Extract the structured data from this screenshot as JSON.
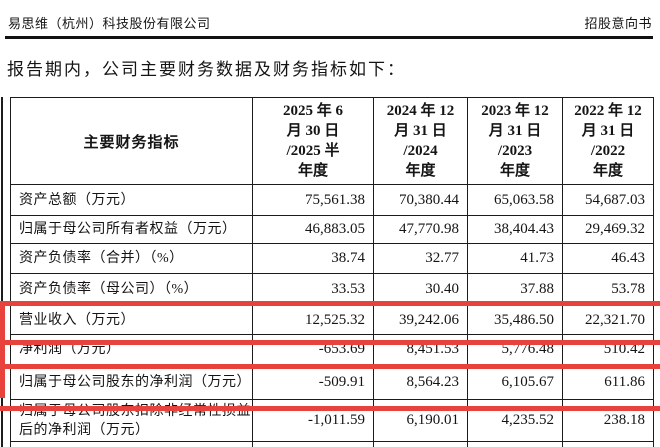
{
  "header": {
    "company": "易思维（杭州）科技股份有限公司",
    "doc_type": "招股意向书"
  },
  "intro": "报告期内，公司主要财务数据及财务指标如下：",
  "table": {
    "indicator_header": "主要财务指标",
    "period_headers": [
      "2025 年 6\n月 30 日\n/2025 半\n年度",
      "2024 年 12\n月 31 日\n/2024\n年度",
      "2023 年 12\n月 31 日\n/2023\n年度",
      "2022 年 12\n月 31 日\n/2022\n年度"
    ],
    "rows": [
      {
        "label": "资产总额（万元）",
        "values": [
          "75,561.38",
          "70,380.44",
          "65,063.58",
          "54,687.03"
        ],
        "highlight": false
      },
      {
        "label": "归属于母公司所有者权益（万元）",
        "values": [
          "46,883.05",
          "47,770.98",
          "38,404.43",
          "29,469.32"
        ],
        "highlight": false
      },
      {
        "label": "资产负债率（合并）（%）",
        "values": [
          "38.74",
          "32.77",
          "41.73",
          "46.43"
        ],
        "highlight": false
      },
      {
        "label": "资产负债率（母公司）（%）",
        "values": [
          "33.53",
          "30.40",
          "37.88",
          "53.78"
        ],
        "highlight": false
      },
      {
        "label": "营业收入（万元）",
        "values": [
          "12,525.32",
          "39,242.06",
          "35,486.50",
          "22,321.70"
        ],
        "highlight": true
      },
      {
        "label": "净利润（万元）",
        "values": [
          "-653.69",
          "8,451.53",
          "5,776.48",
          "510.42"
        ],
        "highlight": false
      },
      {
        "label": "归属于母公司股东的净利润（万元）",
        "values": [
          "-509.91",
          "8,564.23",
          "6,105.67",
          "611.86"
        ],
        "highlight": true
      },
      {
        "label": "归属于母公司股东扣除非经常性损益后的净利润（万元）",
        "values": [
          "-1,011.59",
          "6,190.01",
          "4,235.52",
          "238.18"
        ],
        "highlight": false
      }
    ]
  },
  "annotations": {
    "highlight_color": "#e8423d",
    "highlighted_rows": [
      "营业收入（万元）",
      "归属于母公司股东的净利润（万元）"
    ]
  }
}
